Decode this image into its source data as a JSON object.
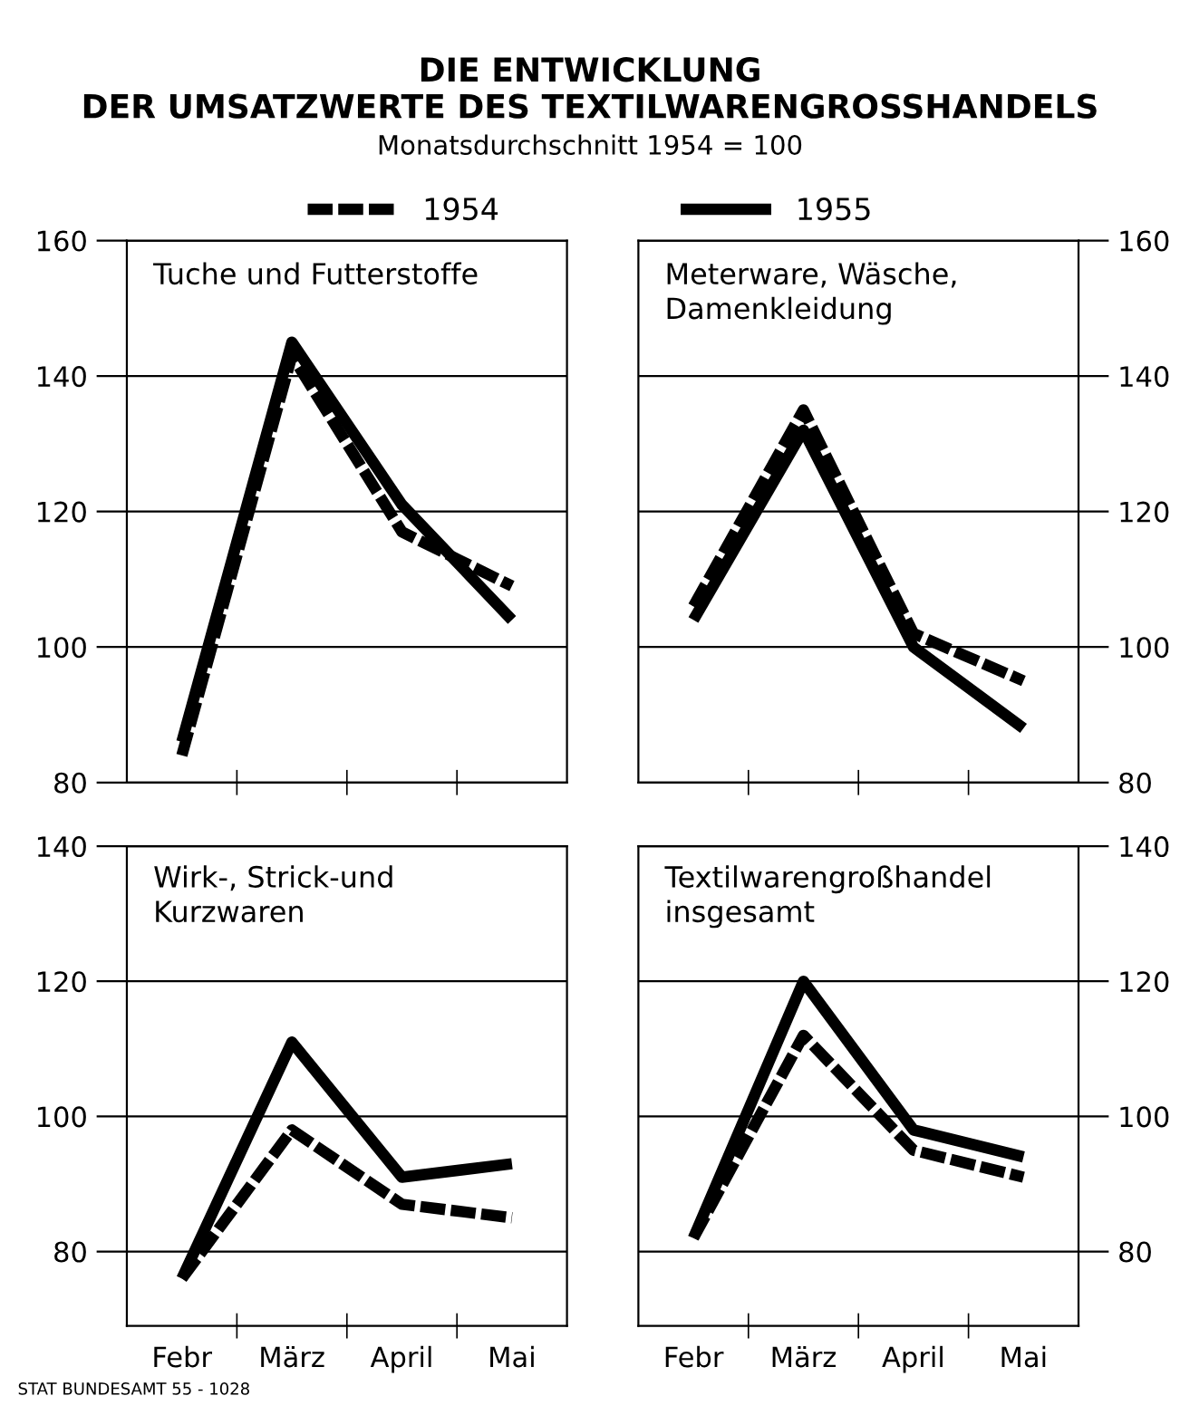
{
  "chart_data": [
    {
      "type": "line",
      "title": "Tuche und Futterstoffe",
      "categories": [
        null,
        null,
        null,
        null
      ],
      "ylim": [
        80,
        160
      ],
      "yticks": [
        80,
        100,
        120,
        140,
        160
      ],
      "grid": "y",
      "legend": "top",
      "tick_labels": "y",
      "annotations": [
        "DIE ENTWICKLUNG\nDER UMSATZWERTE DES TEXTILWARENGROSSHANDELS",
        "Monatsdurchschnitt 1954 = 100",
        "STAT BUNDESAMT 55 - 1028"
      ],
      "series": [
        {
          "name": "1954",
          "color": "#000000",
          "line_style": "dashed",
          "values": [
            84,
            143,
            117,
            109
          ]
        },
        {
          "name": "1955",
          "color": "#000000",
          "line_style": "solid",
          "values": [
            86,
            145,
            121,
            104
          ]
        }
      ]
    },
    {
      "type": "line",
      "title": "Meterware, Wäsche,\nDamenkleidung",
      "categories": [
        null,
        null,
        null,
        null
      ],
      "ylim": [
        80,
        160
      ],
      "yticks": [
        80,
        100,
        120,
        140,
        160
      ],
      "grid": "y",
      "tick_labels": "y",
      "series": [
        {
          "name": "1954",
          "color": "#000000",
          "line_style": "dashed",
          "values": [
            106,
            135,
            102,
            95
          ]
        },
        {
          "name": "1955",
          "color": "#000000",
          "line_style": "solid",
          "values": [
            104,
            132,
            100,
            88
          ]
        }
      ]
    },
    {
      "type": "line",
      "title": "Wirk-, Strick-und\nKurzwaren",
      "categories": [
        "Febr",
        "März",
        "April",
        "Mai"
      ],
      "ylim": [
        69,
        140
      ],
      "yticks": [
        80,
        100,
        120,
        140
      ],
      "grid": "y",
      "series": [
        {
          "name": "1954",
          "color": "#000000",
          "line_style": "dashed",
          "values": [
            76,
            98,
            87,
            85
          ]
        },
        {
          "name": "1955",
          "color": "#000000",
          "line_style": "solid",
          "values": [
            76,
            111,
            91,
            93
          ]
        }
      ]
    },
    {
      "type": "line",
      "title": "Textilwarengroßhandel\ninsgesamt",
      "categories": [
        "Febr",
        "März",
        "April",
        "Mai"
      ],
      "ylim": [
        69,
        140
      ],
      "yticks": [
        80,
        100,
        120,
        140
      ],
      "grid": "y",
      "series": [
        {
          "name": "1954",
          "color": "#000000",
          "line_style": "dashed",
          "values": [
            82,
            112,
            95,
            91
          ]
        },
        {
          "name": "1955",
          "color": "#000000",
          "line_style": "solid",
          "values": [
            82,
            120,
            98,
            94
          ]
        }
      ]
    }
  ]
}
